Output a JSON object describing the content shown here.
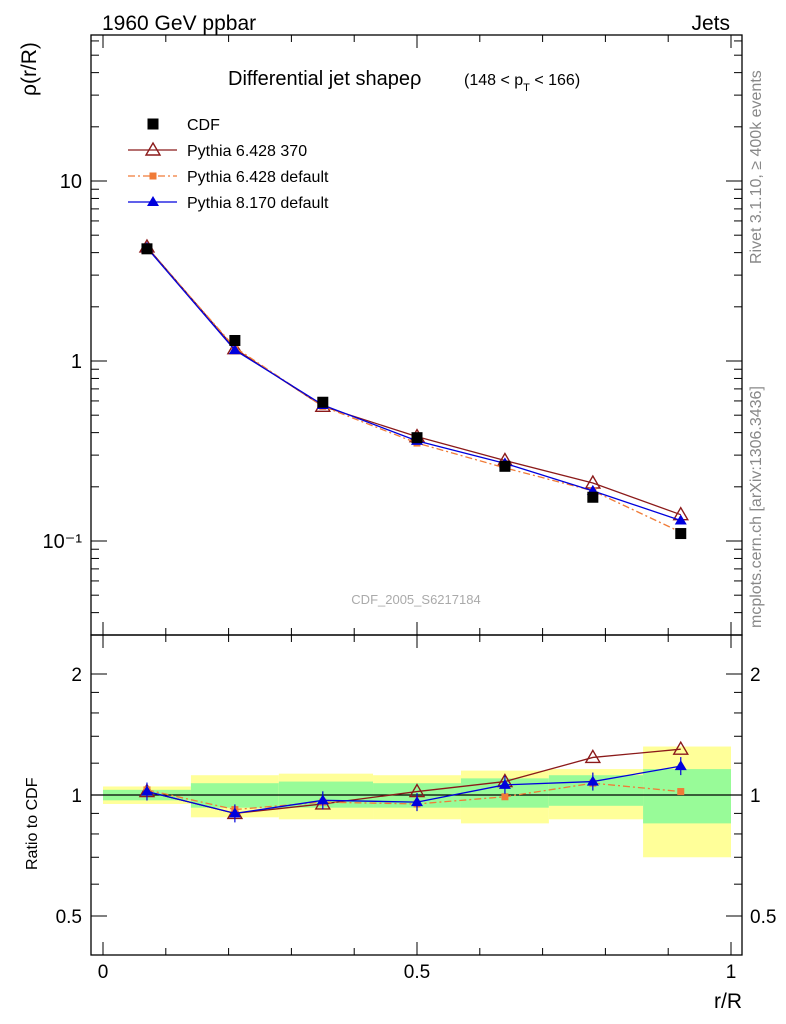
{
  "header": {
    "left": "1960 GeV ppbar",
    "right": "Jets",
    "side_top": "Rivet 3.1.10, ≥ 400k events",
    "side_bottom": "mcplots.cern.ch [arXiv:1306.3436]",
    "watermark": "CDF_2005_S6217184"
  },
  "chart_data": {
    "type": "line",
    "title": "Differential jet shapeρ",
    "title_range": "(148 < p_T < 166)",
    "title_range_parts": {
      "pre": "(148 < p",
      "sub": "T",
      "post": " < 166)"
    },
    "xlabel": "r/R",
    "ylabel": "ρ(r/R)",
    "ratio_ylabel": "Ratio to CDF",
    "xlim": [
      -0.02,
      1.0
    ],
    "ylim": [
      0.035,
      80
    ],
    "yscale": "log",
    "ratio_ylim": [
      0.4,
      2.3
    ],
    "x": [
      0.07,
      0.21,
      0.35,
      0.5,
      0.64,
      0.78,
      0.92
    ],
    "x_tick_labels": [
      "0",
      "0.5",
      "1"
    ],
    "y_tick_labels": [
      "10⁻¹",
      "1",
      "10"
    ],
    "ratio_tick_labels": [
      "0.5",
      "1",
      "2"
    ],
    "legend_position": "top-left",
    "series": [
      {
        "name": "CDF",
        "color": "#000000",
        "marker": "square",
        "line": "none",
        "values": [
          4.2,
          1.3,
          0.59,
          0.375,
          0.26,
          0.175,
          0.11
        ],
        "ratio": [
          1.0,
          1.0,
          1.0,
          1.0,
          1.0,
          1.0,
          1.0
        ]
      },
      {
        "name": "Pythia 6.428 370",
        "color": "#8b1a1a",
        "marker": "open-triangle",
        "line": "solid",
        "values": [
          4.3,
          1.17,
          0.56,
          0.38,
          0.28,
          0.21,
          0.14
        ],
        "ratio": [
          1.02,
          0.9,
          0.95,
          1.02,
          1.08,
          1.24,
          1.3
        ]
      },
      {
        "name": "Pythia 6.428 default",
        "color": "#f07b37",
        "marker": "small-square",
        "line": "dashdot",
        "values": [
          4.25,
          1.19,
          0.56,
          0.35,
          0.255,
          0.19,
          0.112
        ],
        "ratio": [
          1.03,
          0.92,
          0.96,
          0.95,
          0.99,
          1.07,
          1.02
        ]
      },
      {
        "name": "Pythia 8.170 default",
        "color": "#0000dd",
        "marker": "filled-triangle",
        "line": "solid",
        "values": [
          4.25,
          1.15,
          0.57,
          0.36,
          0.27,
          0.19,
          0.13
        ],
        "ratio": [
          1.02,
          0.9,
          0.97,
          0.96,
          1.06,
          1.08,
          1.18
        ]
      }
    ],
    "bands": {
      "edges": [
        0.0,
        0.14,
        0.28,
        0.43,
        0.57,
        0.71,
        0.86,
        1.0
      ],
      "inner": [
        [
          0.97,
          1.03
        ],
        [
          0.93,
          1.07
        ],
        [
          0.93,
          1.08
        ],
        [
          0.93,
          1.07
        ],
        [
          0.93,
          1.1
        ],
        [
          0.94,
          1.12
        ],
        [
          0.85,
          1.16
        ]
      ],
      "outer": [
        [
          0.95,
          1.05
        ],
        [
          0.88,
          1.12
        ],
        [
          0.87,
          1.13
        ],
        [
          0.87,
          1.12
        ],
        [
          0.85,
          1.15
        ],
        [
          0.87,
          1.16
        ],
        [
          0.7,
          1.32
        ]
      ],
      "inner_color": "#98fb98",
      "outer_color": "#ffff99"
    }
  }
}
